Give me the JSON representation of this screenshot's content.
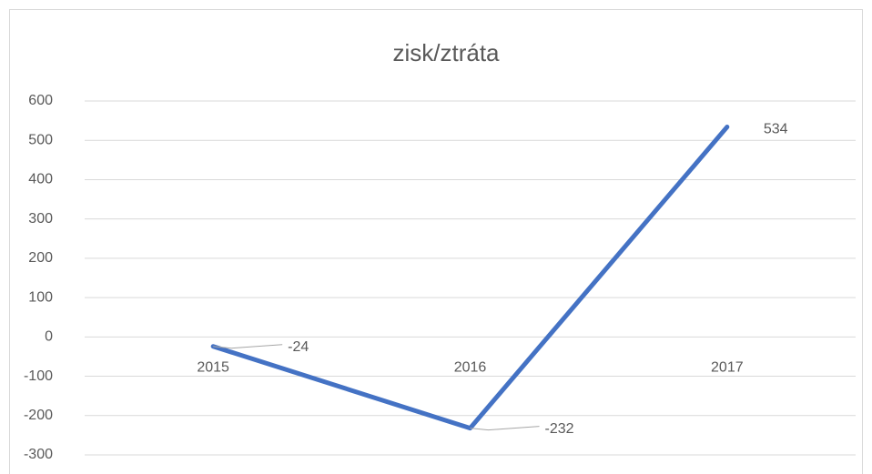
{
  "chart_data": {
    "type": "line",
    "title": "zisk/ztráta",
    "categories": [
      "2015",
      "2016",
      "2017"
    ],
    "values": [
      -24,
      -232,
      534
    ],
    "color": "#4472c4",
    "ylim": [
      -300,
      600
    ],
    "yticks": [
      -300,
      -200,
      -100,
      0,
      100,
      200,
      300,
      400,
      500,
      600
    ],
    "grid": true
  }
}
